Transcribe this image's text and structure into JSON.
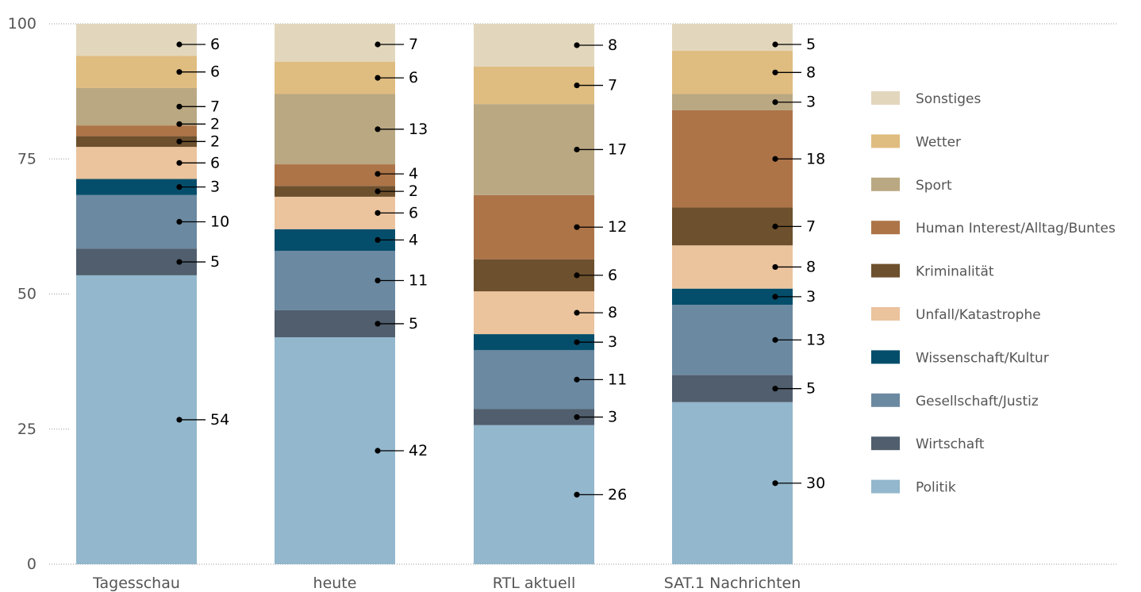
{
  "chart_data": {
    "type": "bar",
    "stacked": true,
    "categories": [
      "Tagesschau",
      "heute",
      "RTL aktuell",
      "SAT.1 Nachrichten"
    ],
    "series": [
      {
        "name": "Politik",
        "color": "#93b7cc",
        "values": [
          54,
          42,
          26,
          30
        ]
      },
      {
        "name": "Wirtschaft",
        "color": "#505e6d",
        "values": [
          5,
          5,
          3,
          5
        ]
      },
      {
        "name": "Gesellschaft/Justiz",
        "color": "#6b89a1",
        "values": [
          10,
          11,
          11,
          13
        ]
      },
      {
        "name": "Wissenschaft/Kultur",
        "color": "#054e6b",
        "values": [
          3,
          4,
          3,
          3
        ]
      },
      {
        "name": "Unfall/Katastrophe",
        "color": "#ebc39d",
        "values": [
          6,
          6,
          8,
          8
        ]
      },
      {
        "name": "Kriminalität",
        "color": "#6d502d",
        "values": [
          2,
          2,
          6,
          7
        ]
      },
      {
        "name": "Human Interest/Alltag/Buntes",
        "color": "#ad7448",
        "values": [
          2,
          4,
          12,
          18
        ]
      },
      {
        "name": "Sport",
        "color": "#baa882",
        "values": [
          7,
          13,
          17,
          3
        ]
      },
      {
        "name": "Wetter",
        "color": "#dfbc80",
        "values": [
          6,
          6,
          7,
          8
        ]
      },
      {
        "name": "Sonstiges",
        "color": "#e2d7bd",
        "values": [
          6,
          7,
          8,
          5
        ]
      }
    ],
    "yticks": [
      0,
      25,
      50,
      75,
      100
    ],
    "ylim": [
      0,
      100
    ],
    "grid": "dotted",
    "legend_position": "right",
    "data_labels": true
  }
}
